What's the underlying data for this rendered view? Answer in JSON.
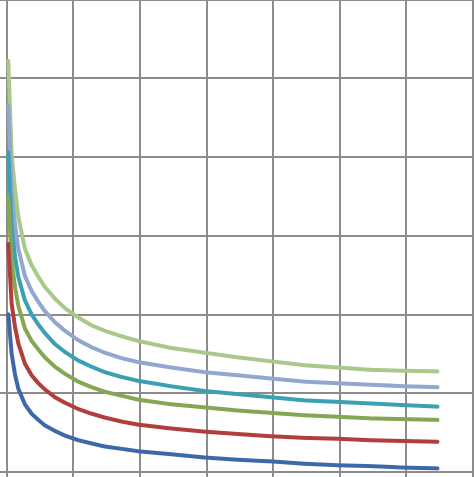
{
  "chart_data": {
    "type": "line",
    "title": "",
    "xlabel": "",
    "ylabel": "",
    "x": [
      1,
      2,
      3,
      4,
      6,
      8,
      10,
      12,
      15,
      18,
      22,
      26,
      30,
      35,
      40,
      50,
      60,
      70,
      80,
      90,
      100,
      110,
      120,
      130
    ],
    "xlim": [
      -1.5,
      141
    ],
    "ylim": [
      1.3,
      7.4
    ],
    "grid": true,
    "series": [
      {
        "color": "#a9c98a",
        "values": [
          6.62,
          5.42,
          4.98,
          4.63,
          4.22,
          4.01,
          3.86,
          3.73,
          3.58,
          3.46,
          3.34,
          3.24,
          3.17,
          3.1,
          3.04,
          2.95,
          2.89,
          2.83,
          2.78,
          2.73,
          2.7,
          2.67,
          2.66,
          2.65
        ]
      },
      {
        "color": "#92a6d0",
        "values": [
          6.05,
          4.95,
          4.53,
          4.22,
          3.87,
          3.68,
          3.54,
          3.42,
          3.28,
          3.17,
          3.05,
          2.96,
          2.89,
          2.82,
          2.77,
          2.7,
          2.64,
          2.6,
          2.56,
          2.52,
          2.5,
          2.48,
          2.46,
          2.45
        ]
      },
      {
        "color": "#3ca0b3",
        "values": [
          5.45,
          4.5,
          4.12,
          3.86,
          3.56,
          3.38,
          3.25,
          3.14,
          3.0,
          2.9,
          2.79,
          2.71,
          2.64,
          2.58,
          2.53,
          2.46,
          2.4,
          2.36,
          2.32,
          2.28,
          2.26,
          2.24,
          2.22,
          2.2
        ]
      },
      {
        "color": "#84a753",
        "values": [
          4.88,
          4.07,
          3.73,
          3.49,
          3.2,
          3.04,
          2.93,
          2.83,
          2.71,
          2.62,
          2.52,
          2.45,
          2.39,
          2.34,
          2.29,
          2.23,
          2.19,
          2.15,
          2.12,
          2.09,
          2.07,
          2.05,
          2.04,
          2.03
        ]
      },
      {
        "color": "#b13e3b",
        "values": [
          4.28,
          3.52,
          3.22,
          3.01,
          2.75,
          2.6,
          2.5,
          2.42,
          2.32,
          2.25,
          2.17,
          2.11,
          2.06,
          2.01,
          1.97,
          1.92,
          1.88,
          1.85,
          1.82,
          1.8,
          1.79,
          1.77,
          1.76,
          1.75
        ]
      },
      {
        "color": "#3e69a8",
        "values": [
          3.38,
          2.88,
          2.61,
          2.43,
          2.23,
          2.11,
          2.03,
          1.96,
          1.89,
          1.83,
          1.77,
          1.73,
          1.69,
          1.66,
          1.63,
          1.59,
          1.55,
          1.52,
          1.5,
          1.47,
          1.45,
          1.44,
          1.42,
          1.41
        ]
      }
    ]
  }
}
